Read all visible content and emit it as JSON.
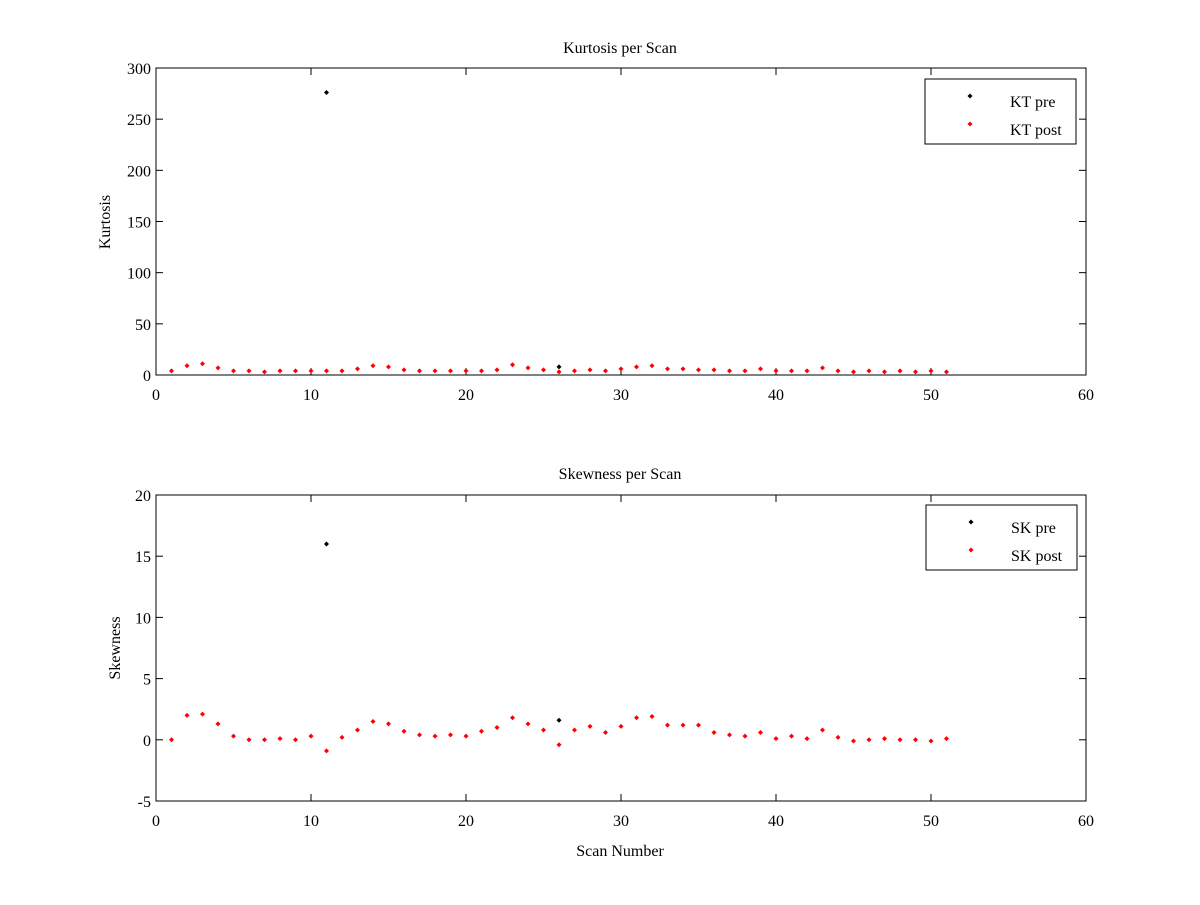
{
  "chart_data": [
    {
      "type": "scatter",
      "title": "Kurtosis per Scan",
      "xlabel": "",
      "ylabel": "Kurtosis",
      "xlim": [
        0,
        60
      ],
      "ylim": [
        0,
        300
      ],
      "xticks": [
        0,
        10,
        20,
        30,
        40,
        50,
        60
      ],
      "yticks": [
        0,
        50,
        100,
        150,
        200,
        250,
        300
      ],
      "xtick_labels": [
        "0",
        "10",
        "20",
        "30",
        "40",
        "50",
        "60"
      ],
      "ytick_labels": [
        "0",
        "50",
        "100",
        "150",
        "200",
        "250",
        "300"
      ],
      "legend_position": "top-right",
      "series": [
        {
          "name": "KT pre",
          "color": "#000000",
          "x": [
            11,
            26
          ],
          "y": [
            276,
            8
          ]
        },
        {
          "name": "KT post",
          "color": "#ff0000",
          "x": [
            1,
            2,
            3,
            4,
            5,
            6,
            7,
            8,
            9,
            10,
            11,
            12,
            13,
            14,
            15,
            16,
            17,
            18,
            19,
            20,
            21,
            22,
            23,
            24,
            25,
            26,
            27,
            28,
            29,
            30,
            31,
            32,
            33,
            34,
            35,
            36,
            37,
            38,
            39,
            40,
            41,
            42,
            43,
            44,
            45,
            46,
            47,
            48,
            49,
            50,
            51
          ],
          "y": [
            4,
            9,
            11,
            7,
            4,
            4,
            3,
            4,
            4,
            4,
            4,
            4,
            6,
            9,
            8,
            5,
            4,
            4,
            4,
            4,
            4,
            5,
            10,
            7,
            5,
            3,
            4,
            5,
            4,
            6,
            8,
            9,
            6,
            6,
            5,
            5,
            4,
            4,
            6,
            4,
            4,
            4,
            7,
            4,
            3,
            4,
            3,
            4,
            3,
            4,
            3
          ]
        }
      ]
    },
    {
      "type": "scatter",
      "title": "Skewness per Scan",
      "xlabel": "Scan Number",
      "ylabel": "Skewness",
      "xlim": [
        0,
        60
      ],
      "ylim": [
        -5,
        20
      ],
      "xticks": [
        0,
        10,
        20,
        30,
        40,
        50,
        60
      ],
      "yticks": [
        -5,
        0,
        5,
        10,
        15,
        20
      ],
      "xtick_labels": [
        "0",
        "10",
        "20",
        "30",
        "40",
        "50",
        "60"
      ],
      "ytick_labels": [
        "-5",
        "0",
        "5",
        "10",
        "15",
        "20"
      ],
      "legend_position": "top-right",
      "series": [
        {
          "name": "SK pre",
          "color": "#000000",
          "x": [
            11,
            26
          ],
          "y": [
            16,
            1.6
          ]
        },
        {
          "name": "SK post",
          "color": "#ff0000",
          "x": [
            1,
            2,
            3,
            4,
            5,
            6,
            7,
            8,
            9,
            10,
            11,
            12,
            13,
            14,
            15,
            16,
            17,
            18,
            19,
            20,
            21,
            22,
            23,
            24,
            25,
            26,
            27,
            28,
            29,
            30,
            31,
            32,
            33,
            34,
            35,
            36,
            37,
            38,
            39,
            40,
            41,
            42,
            43,
            44,
            45,
            46,
            47,
            48,
            49,
            50,
            51
          ],
          "y": [
            0.0,
            2.0,
            2.1,
            1.3,
            0.3,
            0.0,
            0.0,
            0.1,
            0.0,
            0.3,
            -0.9,
            0.2,
            0.8,
            1.5,
            1.3,
            0.7,
            0.4,
            0.3,
            0.4,
            0.3,
            0.7,
            1.0,
            1.8,
            1.3,
            0.8,
            -0.4,
            0.8,
            1.1,
            0.6,
            1.1,
            1.8,
            1.9,
            1.2,
            1.2,
            1.2,
            0.6,
            0.4,
            0.3,
            0.6,
            0.1,
            0.3,
            0.1,
            0.8,
            0.2,
            -0.1,
            0.0,
            0.1,
            0.0,
            0.0,
            -0.1,
            0.1
          ]
        }
      ]
    }
  ]
}
